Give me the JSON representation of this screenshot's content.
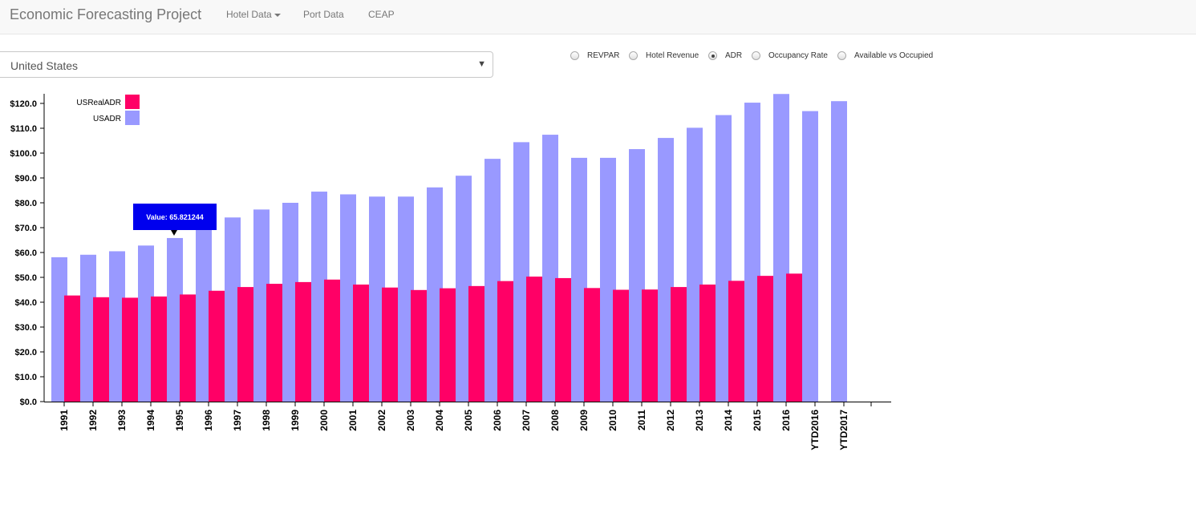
{
  "app": {
    "title": "Economic Forecasting Project",
    "nav": {
      "hotel_data": "Hotel Data",
      "port_data": "Port Data",
      "ceap": "CEAP"
    }
  },
  "filters": {
    "region_select": {
      "value": "United States"
    },
    "metric_options": [
      {
        "label": "REVPAR",
        "checked": false
      },
      {
        "label": "Hotel Revenue",
        "checked": false
      },
      {
        "label": "ADR",
        "checked": true
      },
      {
        "label": "Occupancy Rate",
        "checked": false
      },
      {
        "label": "Available vs Occupied",
        "checked": false
      }
    ]
  },
  "tooltip": {
    "text": "Value: 65.821244"
  },
  "chart_data": {
    "type": "bar",
    "categories": [
      "1991",
      "1992",
      "1993",
      "1994",
      "1995",
      "1996",
      "1997",
      "1998",
      "1999",
      "2000",
      "2001",
      "2002",
      "2003",
      "2004",
      "2005",
      "2006",
      "2007",
      "2008",
      "2009",
      "2010",
      "2011",
      "2012",
      "2013",
      "2014",
      "2015",
      "2016",
      "YTD2016",
      "YTD2017"
    ],
    "series": [
      {
        "name": "USRealADR",
        "color": "#ff0066",
        "values": [
          42.7,
          42.0,
          41.8,
          42.3,
          43.1,
          44.6,
          46.1,
          47.4,
          48.1,
          49.1,
          47.1,
          45.9,
          44.9,
          45.6,
          46.5,
          48.5,
          50.3,
          49.7,
          45.7,
          45.0,
          45.1,
          46.1,
          47.1,
          48.6,
          50.6,
          51.5,
          null,
          null
        ]
      },
      {
        "name": "USADR",
        "color": "#9999ff",
        "values": [
          58.1,
          59.1,
          60.5,
          62.8,
          65.821244,
          70.5,
          74.1,
          77.3,
          80.0,
          84.5,
          83.4,
          82.5,
          82.5,
          86.2,
          90.9,
          97.7,
          104.4,
          107.4,
          98.1,
          98.1,
          101.6,
          106.1,
          110.2,
          115.3,
          120.3,
          123.8,
          116.9,
          120.9
        ]
      }
    ],
    "y_tick_labels": [
      "$0.0",
      "$10.0",
      "$20.0",
      "$30.0",
      "$40.0",
      "$50.0",
      "$60.0",
      "$70.0",
      "$80.0",
      "$90.0",
      "$100.0",
      "$110.0",
      "$120.0"
    ],
    "ylim": [
      0,
      125
    ],
    "legend_position": "top-left"
  }
}
